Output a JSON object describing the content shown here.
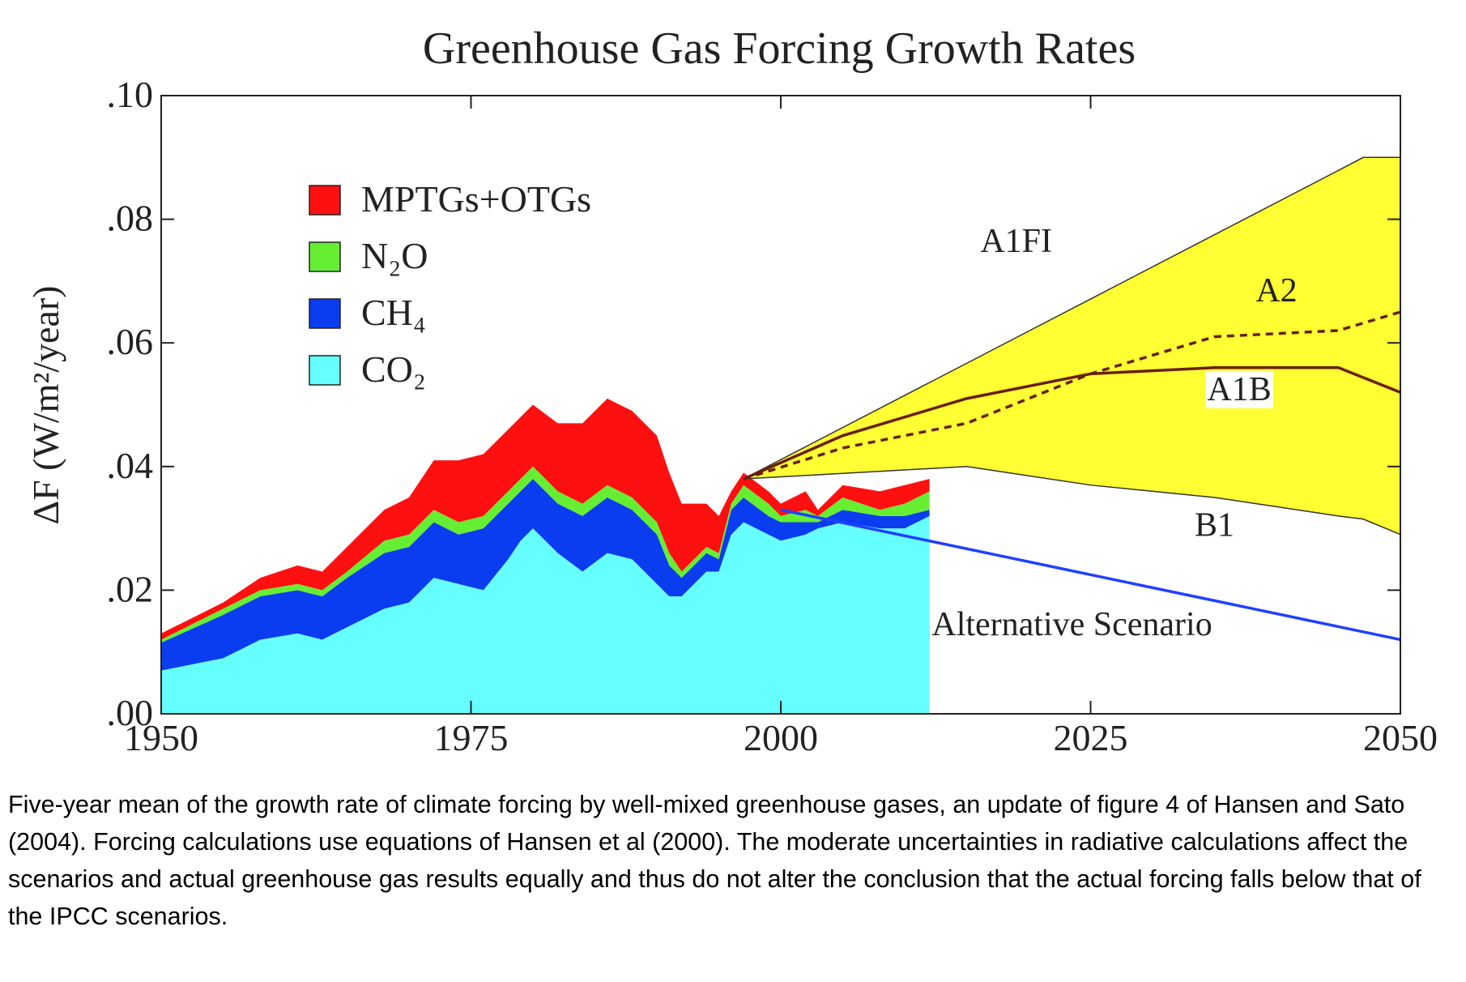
{
  "chart_data": {
    "type": "stacked-area",
    "title": "Greenhouse Gas Forcing Growth Rates",
    "y_label": "ΔF (W/m²/year)",
    "x": [
      1950,
      1955,
      1958,
      1961,
      1963,
      1965,
      1968,
      1970,
      1972,
      1974,
      1976,
      1978,
      1979,
      1980,
      1982,
      1984,
      1986,
      1988,
      1990,
      1991,
      1992,
      1994,
      1995,
      1996,
      1997,
      1999,
      2000,
      2002,
      2003,
      2005,
      2008,
      2010,
      2012
    ],
    "series": [
      {
        "name": "CO₂",
        "color": "#66ffff",
        "values": [
          0.007,
          0.009,
          0.012,
          0.013,
          0.012,
          0.014,
          0.017,
          0.018,
          0.022,
          0.021,
          0.02,
          0.025,
          0.028,
          0.03,
          0.026,
          0.023,
          0.026,
          0.025,
          0.021,
          0.019,
          0.019,
          0.023,
          0.023,
          0.029,
          0.031,
          0.029,
          0.028,
          0.029,
          0.03,
          0.031,
          0.03,
          0.03,
          0.032
        ]
      },
      {
        "name": "CH₄",
        "color": "#0a3cf0",
        "values": [
          0.0045,
          0.007,
          0.007,
          0.007,
          0.007,
          0.008,
          0.009,
          0.009,
          0.009,
          0.008,
          0.01,
          0.009,
          0.008,
          0.008,
          0.008,
          0.009,
          0.009,
          0.008,
          0.008,
          0.005,
          0.003,
          0.003,
          0.002,
          0.004,
          0.004,
          0.003,
          0.003,
          0.002,
          0.001,
          0.002,
          0.002,
          0.002,
          0.001
        ]
      },
      {
        "name": "N₂O",
        "color": "#66ee33",
        "values": [
          0.0005,
          0.001,
          0.001,
          0.001,
          0.001,
          0.001,
          0.002,
          0.002,
          0.002,
          0.002,
          0.002,
          0.002,
          0.002,
          0.002,
          0.002,
          0.002,
          0.002,
          0.002,
          0.002,
          0.002,
          0.001,
          0.001,
          0.001,
          0.001,
          0.002,
          0.002,
          0.001,
          0.002,
          0.001,
          0.002,
          0.001,
          0.002,
          0.003
        ]
      },
      {
        "name": "MPTGs+OTGs",
        "color": "#ff1010",
        "values": [
          0.001,
          0.001,
          0.002,
          0.003,
          0.003,
          0.004,
          0.005,
          0.006,
          0.008,
          0.01,
          0.01,
          0.01,
          0.01,
          0.01,
          0.011,
          0.013,
          0.014,
          0.014,
          0.014,
          0.013,
          0.011,
          0.007,
          0.006,
          0.002,
          0.002,
          0.002,
          0.002,
          0.003,
          0.001,
          0.002,
          0.003,
          0.003,
          0.002
        ]
      }
    ],
    "band_color": "#ffff33",
    "scenarios": [
      {
        "name": "A1FI",
        "color": "#333333",
        "dash": false,
        "x": [
          1997,
          2015,
          2025,
          2035,
          2045,
          2047,
          2050
        ],
        "values": [
          0.038,
          0.0567,
          0.0671,
          0.0775,
          0.0879,
          0.09,
          0.09
        ]
      },
      {
        "name": "B1",
        "color": "#333333",
        "dash": false,
        "x": [
          1997,
          2015,
          2025,
          2035,
          2045,
          2047,
          2050
        ],
        "values": [
          0.038,
          0.04,
          0.037,
          0.035,
          0.032,
          0.0315,
          0.029
        ]
      },
      {
        "name": "A2",
        "color": "#6b1f0a",
        "dash": true,
        "x": [
          1997,
          2005,
          2015,
          2025,
          2035,
          2045,
          2050
        ],
        "values": [
          0.038,
          0.043,
          0.047,
          0.055,
          0.061,
          0.062,
          0.065
        ]
      },
      {
        "name": "A1B",
        "color": "#6b1f0a",
        "dash": false,
        "x": [
          1997,
          2005,
          2015,
          2025,
          2035,
          2045,
          2050
        ],
        "values": [
          0.038,
          0.045,
          0.051,
          0.055,
          0.056,
          0.056,
          0.052
        ]
      },
      {
        "name": "Alternative Scenario",
        "color": "#2040ff",
        "dash": false,
        "x": [
          2000,
          2050
        ],
        "values": [
          0.033,
          0.012
        ]
      }
    ],
    "xlim": [
      1950,
      2050
    ],
    "xticks": [
      1950,
      1975,
      2000,
      2025,
      2050
    ],
    "ylim": [
      0,
      0.1
    ],
    "yticks": [
      {
        "value": 0,
        "label": ".00"
      },
      {
        "value": 0.02,
        "label": ".02"
      },
      {
        "value": 0.04,
        "label": ".04"
      },
      {
        "value": 0.06,
        "label": ".06"
      },
      {
        "value": 0.08,
        "label": ".08"
      },
      {
        "value": 0.1,
        "label": ".10"
      }
    ]
  },
  "caption": "Five-year mean of the growth rate of climate forcing by well-mixed greenhouse gases, an update of figure 4 of Hansen and Sato (2004). Forcing calculations use equations of Hansen et al (2000). The moderate uncertainties in radiative calculations affect the scenarios and actual greenhouse gas results equally and thus do not alter the conclusion that the actual forcing falls below that of the IPCC scenarios."
}
